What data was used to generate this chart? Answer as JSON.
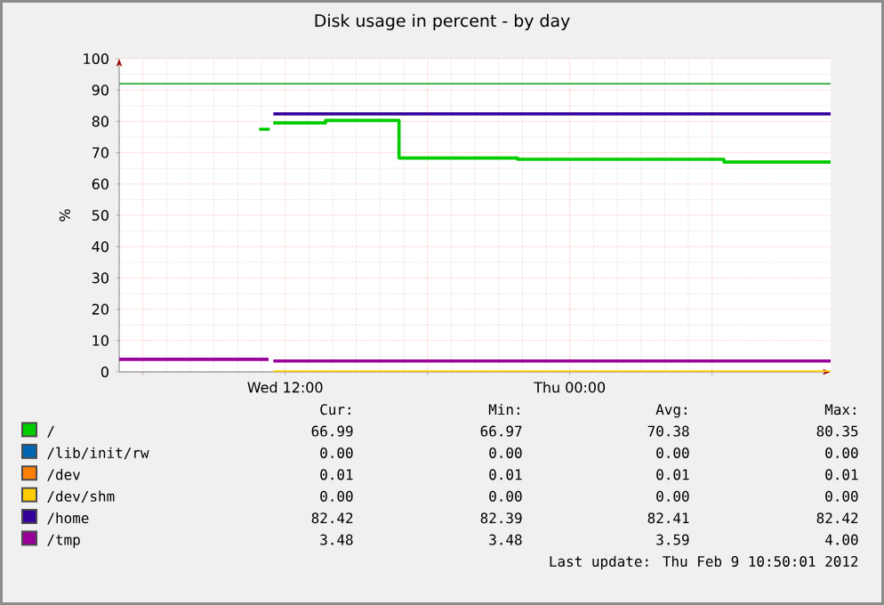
{
  "chart_data": {
    "type": "step",
    "title": "Disk usage in percent - by day",
    "ylabel": "%",
    "xlim": [
      "2012-02-08T05:00",
      "2012-02-09T11:00"
    ],
    "xticks": [
      {
        "value": "2012-02-08T06:00",
        "label": null
      },
      {
        "value": "2012-02-08T12:00",
        "label": "Wed 12:00"
      },
      {
        "value": "2012-02-08T18:00",
        "label": null
      },
      {
        "value": "2012-02-09T00:00",
        "label": "Thu 00:00"
      },
      {
        "value": "2012-02-09T06:00",
        "label": null
      }
    ],
    "ylim": [
      0,
      100
    ],
    "yticks": [
      0,
      10,
      20,
      30,
      40,
      50,
      60,
      70,
      80,
      90,
      100
    ],
    "grid": true,
    "legend": "bottom",
    "marker": "none",
    "line_style": "solid",
    "ref_lines": [
      {
        "axis": "y",
        "value": 92,
        "color": "#33aa33"
      }
    ],
    "series": [
      {
        "name": "/",
        "color": "#00cc00",
        "x": [
          "2012-02-08T10:54",
          "2012-02-08T11:21",
          "2012-02-08T11:24",
          "2012-02-08T11:30",
          "2012-02-08T13:42",
          "2012-02-08T16:48",
          "2012-02-08T21:48",
          "2012-02-09T06:30",
          "2012-02-09T11:00"
        ],
        "values": [
          77.5,
          77.5,
          null,
          79.5,
          80.3,
          68.3,
          67.9,
          67.0,
          67.0
        ]
      },
      {
        "name": "/lib/init/rw",
        "color": "#0066b3"
      },
      {
        "name": "/dev",
        "color": "#ff8000"
      },
      {
        "name": "/dev/shm",
        "color": "#ffcc00",
        "x": [
          "2012-02-08T11:30",
          "2012-02-09T11:00"
        ],
        "values": [
          0,
          0
        ]
      },
      {
        "name": "/home",
        "color": "#330099",
        "x": [
          "2012-02-08T11:30",
          "2012-02-09T11:00"
        ],
        "values": [
          82.4,
          82.4
        ]
      },
      {
        "name": "/tmp",
        "color": "#990099",
        "x": [
          "2012-02-08T05:00",
          "2012-02-08T11:18",
          "2012-02-08T11:24",
          "2012-02-08T11:30",
          "2012-02-09T11:00"
        ],
        "values": [
          4.0,
          4.0,
          null,
          3.5,
          3.5
        ]
      }
    ],
    "annotations": [
      "Cur:",
      "Min:",
      "Avg:",
      "Max:",
      "66.99",
      "66.97",
      "70.38",
      "80.35",
      "0.00",
      "0.00",
      "0.00",
      "0.00",
      "0.01",
      "0.01",
      "0.01",
      "0.01",
      "0.00",
      "0.00",
      "0.00",
      "0.00",
      "82.42",
      "82.39",
      "82.41",
      "82.42",
      "3.48",
      "3.48",
      "3.59",
      "4.00",
      "Last update:  Thu Feb  9 10:50:01 2012"
    ]
  }
}
